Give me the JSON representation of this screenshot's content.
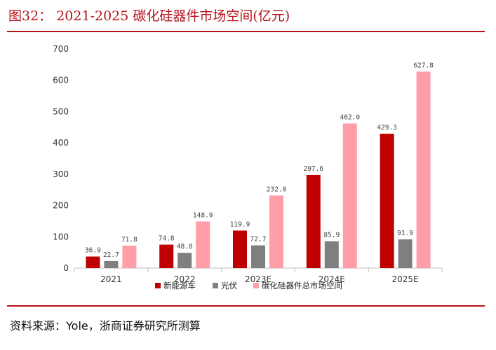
{
  "title": "图32： 2021-2025 碳化硅器件市场空间(亿元)",
  "source": "资料来源：Yole，浙商证券研究所测算",
  "chart_data": {
    "type": "bar",
    "title": "",
    "xlabel": "",
    "ylabel": "",
    "categories": [
      "2021",
      "2022",
      "2023E",
      "2024E",
      "2025E"
    ],
    "series": [
      {
        "name": "新能源车",
        "values": [
          36.9,
          74.8,
          119.9,
          297.6,
          429.3
        ],
        "color": "#c00000"
      },
      {
        "name": "光伏",
        "values": [
          22.7,
          48.8,
          72.7,
          85.9,
          91.9
        ],
        "color": "#7f7f7f"
      },
      {
        "name": "碳化硅器件总市场空间",
        "values": [
          71.8,
          148.9,
          232.0,
          462.0,
          627.8
        ],
        "color": "#ff9ea8"
      }
    ],
    "ylim": [
      0,
      700
    ],
    "yticks": [
      0,
      100,
      200,
      300,
      400,
      500,
      600,
      700
    ],
    "grid": false,
    "legend": "bottom",
    "data_labels": true
  }
}
